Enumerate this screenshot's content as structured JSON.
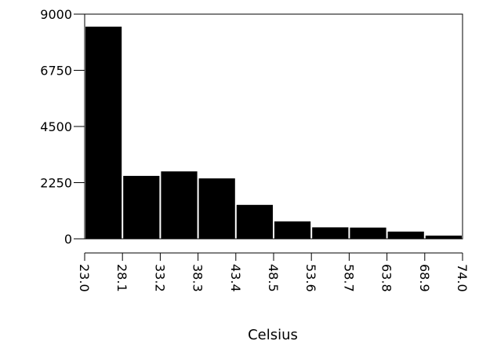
{
  "chart_data": {
    "type": "histogram",
    "title": "",
    "xlabel": "Celsius",
    "ylabel": "",
    "ylim": [
      0,
      9000
    ],
    "y_ticks": [
      "0",
      "2250",
      "4500",
      "6750",
      "9000"
    ],
    "y_tick_values": [
      0,
      2250,
      4500,
      6750,
      9000
    ],
    "x_tick_labels": [
      "23.0",
      "28.1",
      "33.2",
      "38.3",
      "43.4",
      "48.5",
      "53.6",
      "58.7",
      "63.8",
      "68.9",
      "74.0"
    ],
    "bins": [
      {
        "from": "23.0",
        "to": "28.1",
        "value": 8500
      },
      {
        "from": "28.1",
        "to": "33.2",
        "value": 2520
      },
      {
        "from": "33.2",
        "to": "38.3",
        "value": 2700
      },
      {
        "from": "38.3",
        "to": "43.4",
        "value": 2420
      },
      {
        "from": "43.4",
        "to": "48.5",
        "value": 1360
      },
      {
        "from": "48.5",
        "to": "53.6",
        "value": 700
      },
      {
        "from": "53.6",
        "to": "58.7",
        "value": 460
      },
      {
        "from": "58.7",
        "to": "63.8",
        "value": 450
      },
      {
        "from": "63.8",
        "to": "68.9",
        "value": 290
      },
      {
        "from": "68.9",
        "to": "74.0",
        "value": 130
      }
    ],
    "bar_color": "#000000",
    "background_color": "#ffffff",
    "grid": false,
    "legend": "none"
  }
}
